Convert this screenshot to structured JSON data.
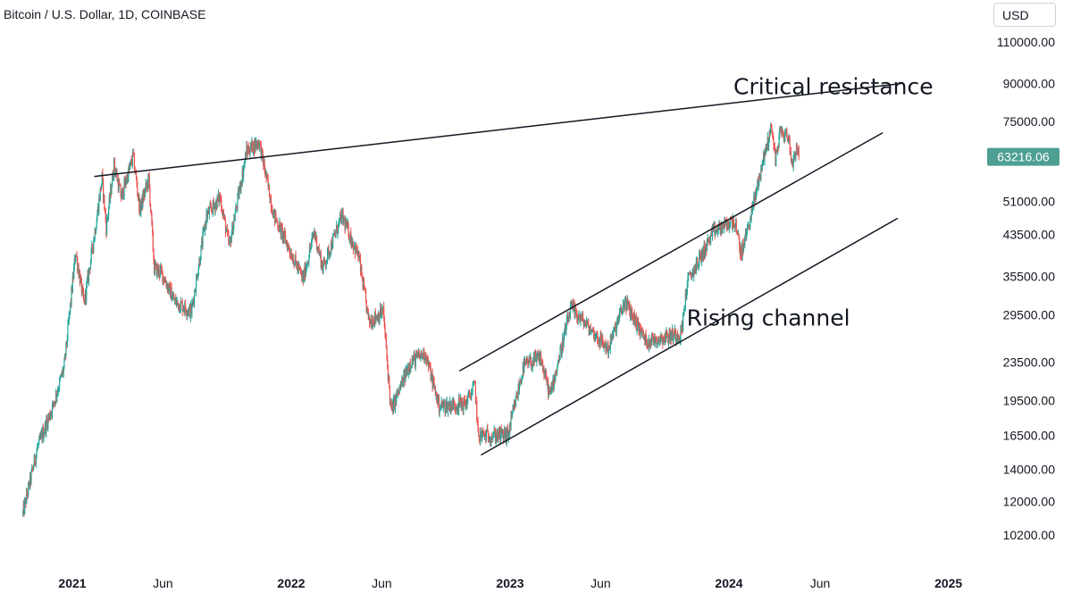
{
  "header": {
    "symbol_title": "Bitcoin / U.S. Dollar, 1D, COINBASE",
    "currency": "USD"
  },
  "chart_data": {
    "type": "candlestick",
    "title": "Bitcoin / U.S. Dollar, 1D, COINBASE",
    "y_scale": "log",
    "y_unit": "USD",
    "y_ticks": [
      "110000.00",
      "90000.00",
      "75000.00",
      "51000.00",
      "43500.00",
      "35500.00",
      "29500.00",
      "23500.00",
      "19500.00",
      "16500.00",
      "14000.00",
      "12000.00",
      "10200.00"
    ],
    "x_ticks": [
      {
        "label": "2021",
        "date": "2021-01-01",
        "major": true
      },
      {
        "label": "Jun",
        "date": "2021-06-01",
        "major": false
      },
      {
        "label": "2022",
        "date": "2022-01-01",
        "major": true
      },
      {
        "label": "Jun",
        "date": "2022-06-01",
        "major": false
      },
      {
        "label": "2023",
        "date": "2023-01-01",
        "major": true
      },
      {
        "label": "Jun",
        "date": "2023-06-01",
        "major": false
      },
      {
        "label": "2024",
        "date": "2024-01-01",
        "major": true
      },
      {
        "label": "Jun",
        "date": "2024-06-01",
        "major": false
      },
      {
        "label": "2025",
        "date": "2025-01-01",
        "major": true
      }
    ],
    "last_price": {
      "value": "63216.06",
      "color": "#4e9f93"
    },
    "colors": {
      "up": "#26a69a",
      "down": "#ef5350"
    },
    "price_path": [
      [
        "2020-10-12",
        11300
      ],
      [
        "2020-11-05",
        15500
      ],
      [
        "2020-12-01",
        19000
      ],
      [
        "2020-12-20",
        23000
      ],
      [
        "2021-01-08",
        40000
      ],
      [
        "2021-01-22",
        31000
      ],
      [
        "2021-02-10",
        45000
      ],
      [
        "2021-02-21",
        57000
      ],
      [
        "2021-02-28",
        45000
      ],
      [
        "2021-03-13",
        61000
      ],
      [
        "2021-03-25",
        52000
      ],
      [
        "2021-04-14",
        63500
      ],
      [
        "2021-04-25",
        49000
      ],
      [
        "2021-05-10",
        57000
      ],
      [
        "2021-05-19",
        37000
      ],
      [
        "2021-06-01",
        36000
      ],
      [
        "2021-06-22",
        31500
      ],
      [
        "2021-07-20",
        30000
      ],
      [
        "2021-08-14",
        47500
      ],
      [
        "2021-09-06",
        52000
      ],
      [
        "2021-09-21",
        41000
      ],
      [
        "2021-10-20",
        65000
      ],
      [
        "2021-11-10",
        68000
      ],
      [
        "2021-12-04",
        48000
      ],
      [
        "2022-01-22",
        35000
      ],
      [
        "2022-02-10",
        44000
      ],
      [
        "2022-02-24",
        37000
      ],
      [
        "2022-03-28",
        47500
      ],
      [
        "2022-04-25",
        39000
      ],
      [
        "2022-05-12",
        28500
      ],
      [
        "2022-06-05",
        30000
      ],
      [
        "2022-06-18",
        18500
      ],
      [
        "2022-07-20",
        23500
      ],
      [
        "2022-08-14",
        24500
      ],
      [
        "2022-09-06",
        19000
      ],
      [
        "2022-10-20",
        19200
      ],
      [
        "2022-11-05",
        21000
      ],
      [
        "2022-11-10",
        16500
      ],
      [
        "2022-12-30",
        16500
      ],
      [
        "2023-01-25",
        23000
      ],
      [
        "2023-02-22",
        24000
      ],
      [
        "2023-03-10",
        20000
      ],
      [
        "2023-04-14",
        30500
      ],
      [
        "2023-06-15",
        25000
      ],
      [
        "2023-07-13",
        31500
      ],
      [
        "2023-08-17",
        26000
      ],
      [
        "2023-10-15",
        27000
      ],
      [
        "2023-10-25",
        34500
      ],
      [
        "2023-12-08",
        44000
      ],
      [
        "2024-01-11",
        46500
      ],
      [
        "2024-01-23",
        39500
      ],
      [
        "2024-02-12",
        50000
      ],
      [
        "2024-02-28",
        62000
      ],
      [
        "2024-03-14",
        73500
      ],
      [
        "2024-03-20",
        62000
      ],
      [
        "2024-03-27",
        71000
      ],
      [
        "2024-04-10",
        70000
      ],
      [
        "2024-04-17",
        61000
      ],
      [
        "2024-04-24",
        66500
      ],
      [
        "2024-04-28",
        63216
      ]
    ],
    "trendlines": [
      {
        "name": "critical-resistance",
        "start": [
          "2021-02-08",
          57500
        ],
        "end": [
          "2024-10-15",
          90000
        ]
      },
      {
        "name": "channel-upper",
        "start": [
          "2022-10-10",
          22500
        ],
        "end": [
          "2024-09-15",
          71000
        ]
      },
      {
        "name": "channel-lower",
        "start": [
          "2022-11-15",
          15000
        ],
        "end": [
          "2024-10-10",
          47000
        ]
      }
    ],
    "annotations": [
      {
        "text": "Critical resistance",
        "date": "2024-01-10",
        "price": 85500
      },
      {
        "text": "Rising channel",
        "date": "2023-10-24",
        "price": 28000
      }
    ]
  }
}
